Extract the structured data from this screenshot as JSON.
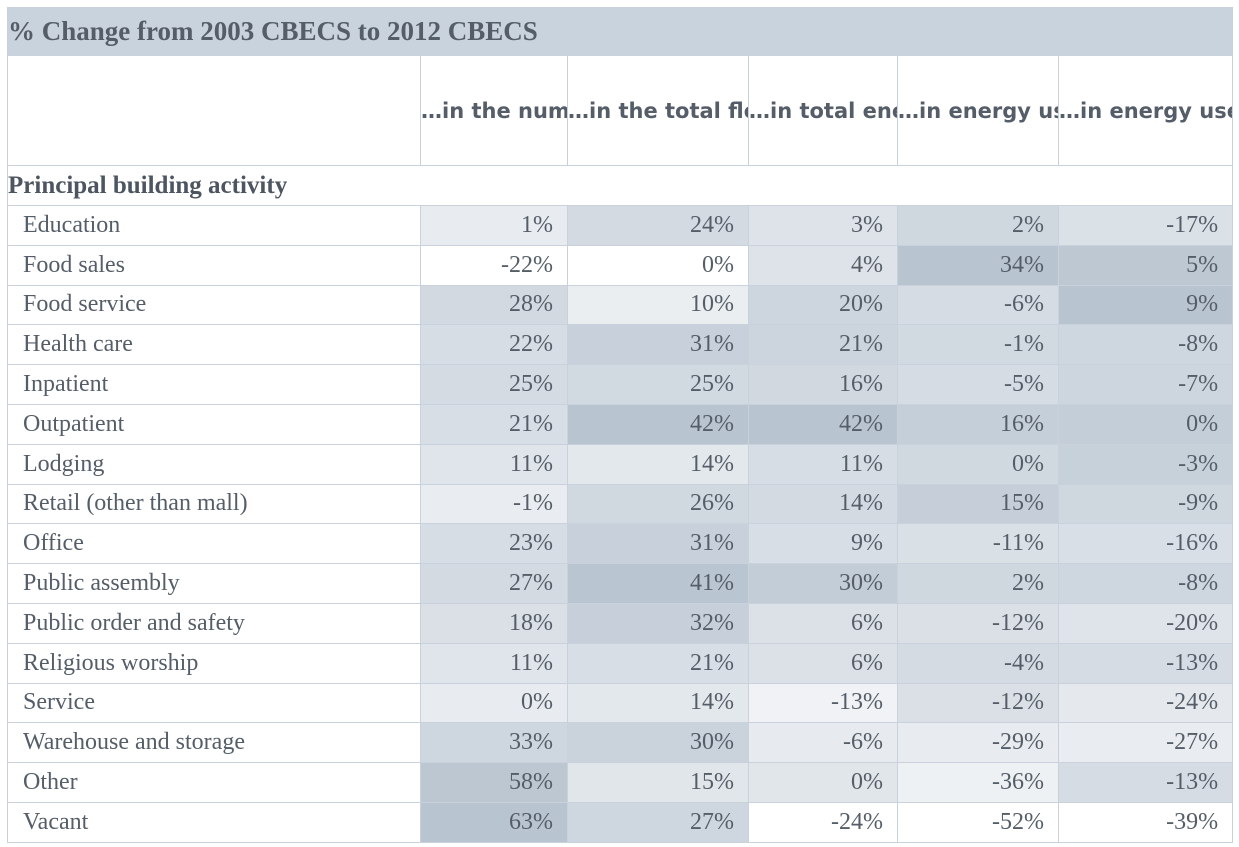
{
  "chart_data": {
    "type": "table",
    "title": "% Change from 2003 CBECS to 2012 CBECS",
    "columns": [
      "…in the number of buildings",
      "…in the total floor space",
      "…in total energy use",
      "…in energy use per building",
      "…in energy use per square foot"
    ],
    "section_label": "Principal building activity",
    "rows": [
      {
        "label": "Education",
        "values": [
          "1%",
          "24%",
          "3%",
          "2%",
          "-17%"
        ]
      },
      {
        "label": "Food sales",
        "values": [
          "-22%",
          "0%",
          "4%",
          "34%",
          "5%"
        ]
      },
      {
        "label": "Food service",
        "values": [
          "28%",
          "10%",
          "20%",
          "-6%",
          "9%"
        ]
      },
      {
        "label": "Health care",
        "values": [
          "22%",
          "31%",
          "21%",
          "-1%",
          "-8%"
        ]
      },
      {
        "label": "Inpatient",
        "values": [
          "25%",
          "25%",
          "16%",
          "-5%",
          "-7%"
        ]
      },
      {
        "label": "Outpatient",
        "values": [
          "21%",
          "42%",
          "42%",
          "16%",
          "0%"
        ]
      },
      {
        "label": "Lodging",
        "values": [
          "11%",
          "14%",
          "11%",
          "0%",
          "-3%"
        ]
      },
      {
        "label": "Retail (other than mall)",
        "values": [
          "-1%",
          "26%",
          "14%",
          "15%",
          "-9%"
        ]
      },
      {
        "label": "Office",
        "values": [
          "23%",
          "31%",
          "9%",
          "-11%",
          "-16%"
        ]
      },
      {
        "label": "Public assembly",
        "values": [
          "27%",
          "41%",
          "30%",
          "2%",
          "-8%"
        ]
      },
      {
        "label": "Public order and safety",
        "values": [
          "18%",
          "32%",
          "6%",
          "-12%",
          "-20%"
        ]
      },
      {
        "label": "Religious worship",
        "values": [
          "11%",
          "21%",
          "6%",
          "-4%",
          "-13%"
        ]
      },
      {
        "label": "Service",
        "values": [
          "0%",
          "14%",
          "-13%",
          "-12%",
          "-24%"
        ]
      },
      {
        "label": "Warehouse and storage",
        "values": [
          "33%",
          "30%",
          "-6%",
          "-29%",
          "-27%"
        ]
      },
      {
        "label": "Other",
        "values": [
          "58%",
          "15%",
          "0%",
          "-36%",
          "-13%"
        ]
      },
      {
        "label": "Vacant",
        "values": [
          "63%",
          "27%",
          "-24%",
          "-52%",
          "-39%"
        ]
      }
    ],
    "colors": {
      "title_band": "#c9d3de",
      "heat_low": "#ffffff",
      "heat_high": "#b8c4d0",
      "text": "#555e68",
      "grid": "#c9d2dc"
    }
  }
}
